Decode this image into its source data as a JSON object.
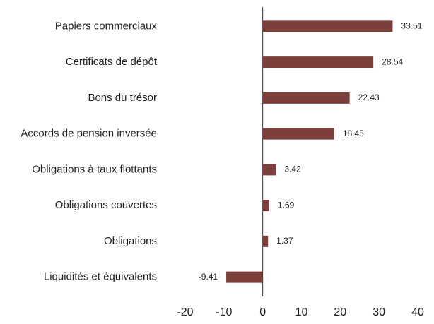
{
  "chart_data": {
    "type": "barh",
    "categories": [
      "Papiers commerciaux",
      "Certificats de dépôt",
      "Bons du trésor",
      "Accords de pension inversée",
      "Obligations à taux flottants",
      "Obligations couvertes",
      "Obligations",
      "Liquidités et équivalents"
    ],
    "values": [
      33.51,
      28.54,
      22.43,
      18.45,
      3.42,
      1.69,
      1.37,
      -9.41
    ],
    "color": "#7d3f3b",
    "xlim": [
      -20,
      40
    ],
    "xticks": [
      -20,
      -10,
      0,
      10,
      20,
      30,
      40
    ]
  }
}
